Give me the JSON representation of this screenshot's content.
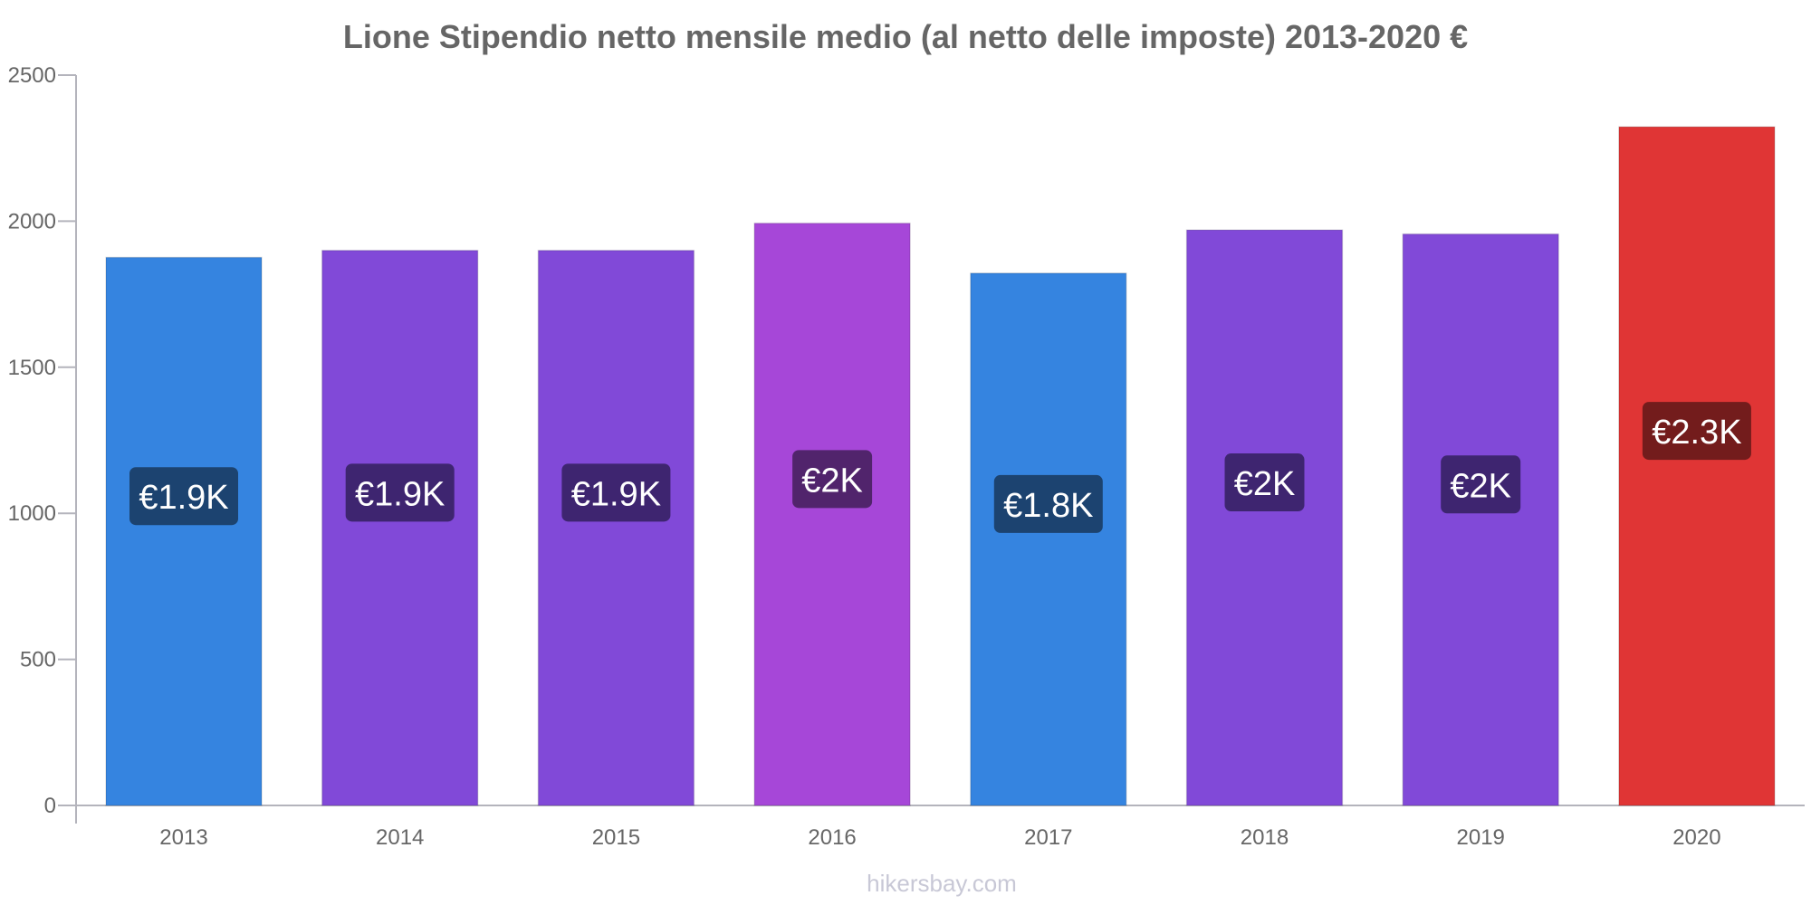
{
  "chart_data": {
    "type": "bar",
    "title": "Lione Stipendio netto mensile medio (al netto delle imposte) 2013-2020 €",
    "xlabel": "",
    "ylabel": "",
    "ylim": [
      0,
      2500
    ],
    "yticks": [
      0,
      500,
      1000,
      1500,
      2000,
      2500
    ],
    "ytick_labels": [
      "0",
      "500",
      "1000",
      "1500",
      "2000",
      "2500"
    ],
    "grid": false,
    "legend": "none",
    "categories": [
      "2013",
      "2014",
      "2015",
      "2016",
      "2017",
      "2018",
      "2019",
      "2020"
    ],
    "values": [
      1876,
      1900,
      1900,
      1993,
      1822,
      1970,
      1956,
      2323
    ],
    "data_labels": [
      "€1.9K",
      "€1.9K",
      "€1.9K",
      "€2K",
      "€1.8K",
      "€2K",
      "€2K",
      "€2.3K"
    ],
    "bar_colors": [
      "#3584e0",
      "#8149d8",
      "#8149d8",
      "#a647d8",
      "#3584e0",
      "#8149d8",
      "#8149d8",
      "#e03535"
    ],
    "label_colors": [
      "#1c4370",
      "#3e2570",
      "#3e2570",
      "#51246c",
      "#1c4370",
      "#3e2570",
      "#3e2570",
      "#731c1c"
    ]
  },
  "footer": {
    "source": "hikersbay.com"
  }
}
